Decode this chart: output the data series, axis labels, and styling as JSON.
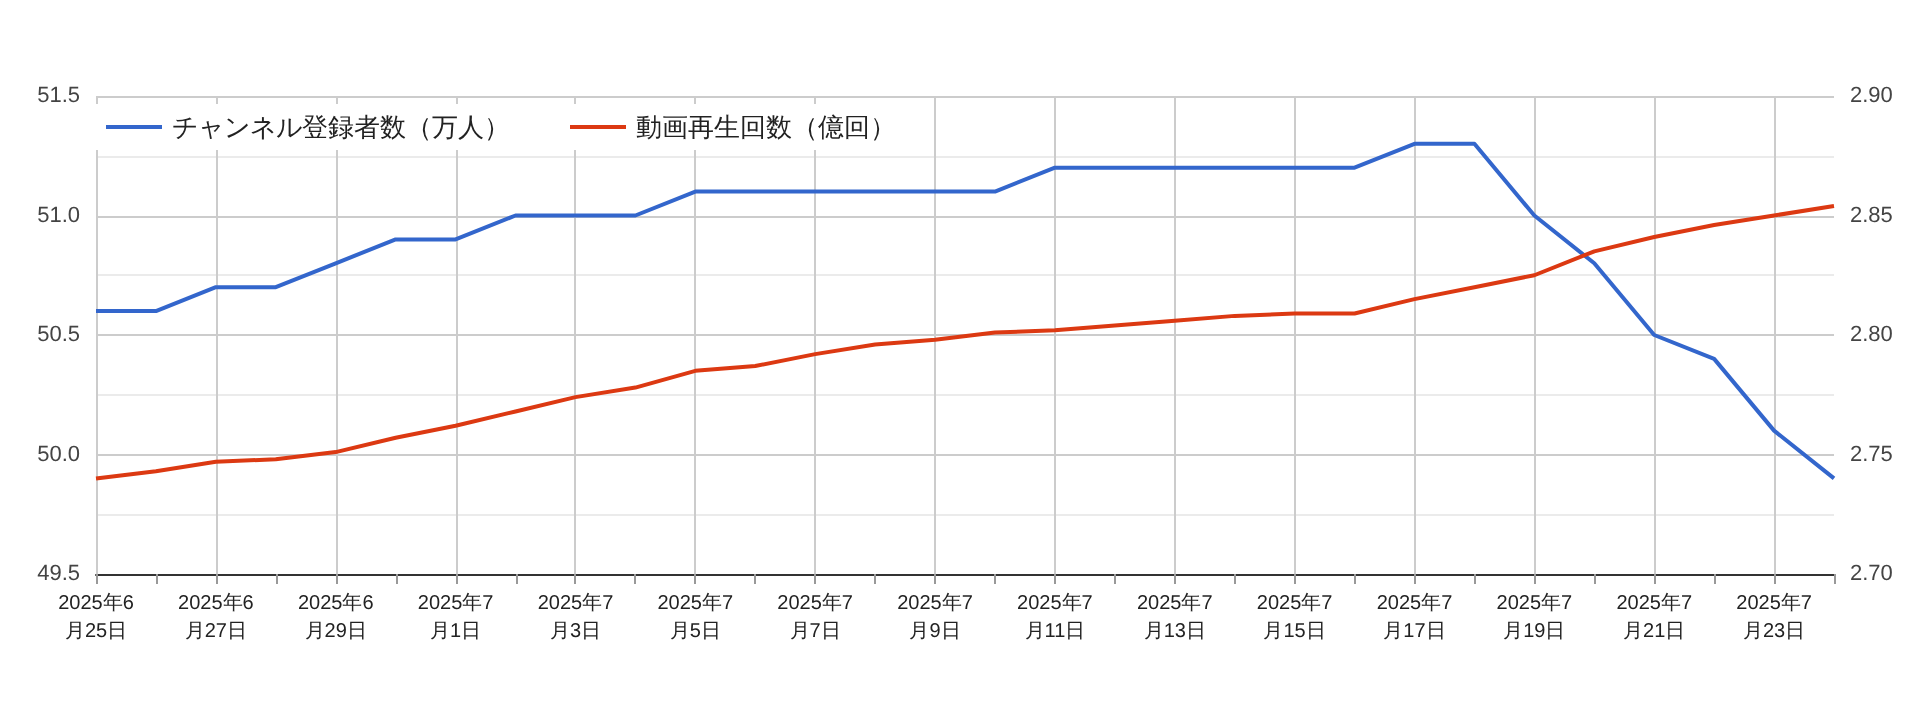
{
  "chart_data": {
    "type": "line",
    "categories": [
      "2025年6月25日",
      null,
      "2025年6月27日",
      null,
      "2025年6月29日",
      null,
      "2025年7月1日",
      null,
      "2025年7月3日",
      null,
      "2025年7月5日",
      null,
      "2025年7月7日",
      null,
      "2025年7月9日",
      null,
      "2025年7月11日",
      null,
      "2025年7月13日",
      null,
      "2025年7月15日",
      null,
      "2025年7月17日",
      null,
      "2025年7月19日",
      null,
      "2025年7月21日",
      null,
      "2025年7月23日",
      null
    ],
    "series": [
      {
        "name": "チャンネル登録者数（万人）",
        "color": "#3366cc",
        "values": [
          50.6,
          50.6,
          50.7,
          50.7,
          50.8,
          50.9,
          50.9,
          51.0,
          51.0,
          51.0,
          51.1,
          51.1,
          51.1,
          51.1,
          51.1,
          51.1,
          51.2,
          51.2,
          51.2,
          51.2,
          51.2,
          51.2,
          51.3,
          51.3,
          51.0,
          50.8,
          50.5,
          50.4,
          50.1,
          49.9
        ]
      },
      {
        "name": "動画再生回数（億回）",
        "color": "#dc3912",
        "axis": "y2",
        "values": [
          2.74,
          2.743,
          2.747,
          2.748,
          2.751,
          2.757,
          2.762,
          2.768,
          2.774,
          2.778,
          2.785,
          2.787,
          2.792,
          2.796,
          2.798,
          2.801,
          2.802,
          2.804,
          2.806,
          2.808,
          2.809,
          2.809,
          2.815,
          2.82,
          2.825,
          2.835,
          2.841,
          2.846,
          2.85,
          2.854
        ]
      }
    ],
    "ylim": [
      49.5,
      51.5
    ],
    "yticks": [
      49.5,
      {
        "value": 50,
        "label": "50.0"
      },
      50.5,
      {
        "value": 51,
        "label": "51.0"
      },
      51.5
    ],
    "y2lim": [
      2.7,
      2.9
    ],
    "y2ticks": [
      {
        "value": 2.7,
        "label": "2.70"
      },
      2.75,
      {
        "value": 2.8,
        "label": "2.80"
      },
      2.85,
      {
        "value": 2.9,
        "label": "2.90"
      }
    ],
    "grid": true,
    "legend": "top left",
    "marker": "none",
    "line_style": "solid"
  }
}
